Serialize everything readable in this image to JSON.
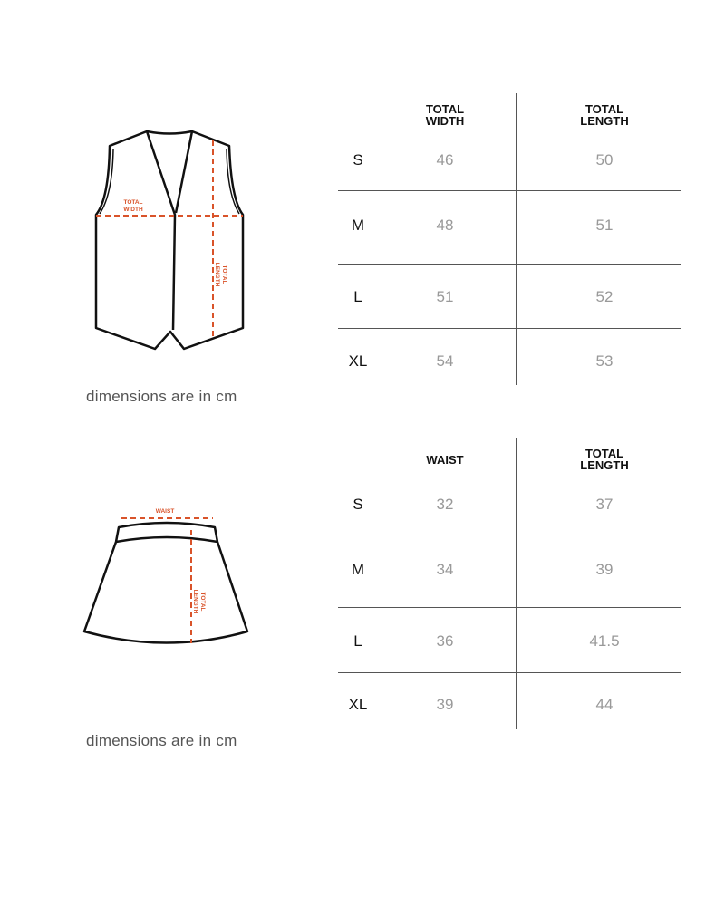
{
  "vest": {
    "diagram_labels": {
      "width": "TOTAL WIDTH",
      "width_l1": "TOTAL",
      "width_l2": "WIDTH",
      "length_l1": "TOTAL",
      "length_l2": "LENGTH"
    },
    "note": "dimensions are in cm",
    "headers": [
      "TOTAL\nWIDTH",
      "TOTAL\nLENGTH"
    ],
    "rows": [
      {
        "size": "S",
        "a": "46",
        "b": "50"
      },
      {
        "size": "M",
        "a": "48",
        "b": "51"
      },
      {
        "size": "L",
        "a": "51",
        "b": "52"
      },
      {
        "size": "XL",
        "a": "54",
        "b": "53"
      }
    ]
  },
  "skirt": {
    "diagram_labels": {
      "waist": "WAIST",
      "length_l1": "TOTAL",
      "length_l2": "LENGTH"
    },
    "note": "dimensions are in cm",
    "headers": [
      "WAIST",
      "TOTAL\nLENGTH"
    ],
    "rows": [
      {
        "size": "S",
        "a": "32",
        "b": "37"
      },
      {
        "size": "M",
        "a": "34",
        "b": "39"
      },
      {
        "size": "L",
        "a": "36",
        "b": "41.5"
      },
      {
        "size": "XL",
        "a": "39",
        "b": "44"
      }
    ]
  },
  "colors": {
    "accent": "#d9532a",
    "outline": "#111111"
  }
}
